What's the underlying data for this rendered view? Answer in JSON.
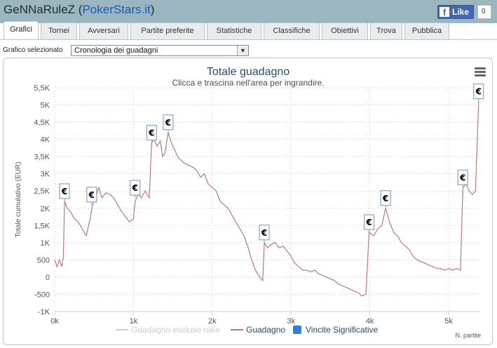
{
  "header": {
    "player_name": "GeNNaRuleZ",
    "site_link": "PokerStars.it",
    "like_label": "Like",
    "like_count": "0"
  },
  "tabs": [
    {
      "label": "Grafici",
      "active": true
    },
    {
      "label": "Tornei",
      "active": false
    },
    {
      "label": "Avversari",
      "active": false
    },
    {
      "label": "Partite preferite",
      "active": false
    },
    {
      "label": "Statistiche",
      "active": false
    },
    {
      "label": "Classifiche",
      "active": false
    },
    {
      "label": "Obiettivi",
      "active": false
    },
    {
      "label": "Trova",
      "active": false
    },
    {
      "label": "Pubblica",
      "active": false
    }
  ],
  "selector": {
    "label": "Grafico selezionato",
    "value": "Cronologia dei guadagni"
  },
  "colors": {
    "header_bg": "#9bb6bf",
    "line_main": "#b97a7a",
    "line_no_rake": "#d0d0d0",
    "flag_border": "#7ea6d8",
    "legend_significant": "#2f7ed8"
  },
  "chart_data": {
    "type": "line",
    "title": "Totale guadagno",
    "subtitle": "Clicca e trascina nell'area per ingrandire.",
    "ylabel": "Totale cumulativo (EUR)",
    "xlabel": "N. partite",
    "xlim": [
      0,
      5400
    ],
    "ylim": [
      -1000,
      5500
    ],
    "x_ticks": [
      0,
      1000,
      2000,
      3000,
      4000,
      5000
    ],
    "x_tick_labels": [
      "0k",
      "1k",
      "2k",
      "3k",
      "4k",
      "5k"
    ],
    "y_ticks": [
      -1000,
      -500,
      0,
      500,
      1000,
      1500,
      2000,
      2500,
      3000,
      3500,
      4000,
      4500,
      5000,
      5500
    ],
    "y_tick_labels": [
      "-1K",
      "-500",
      "0",
      "500",
      "1K",
      "1,5K",
      "2K",
      "2,5K",
      "3K",
      "3,5K",
      "4K",
      "4,5K",
      "5K",
      "5,5K"
    ],
    "grid": true,
    "legend_position": "bottom",
    "legend": [
      "Guadagno escluso rake",
      "Guadagno",
      "Vincite Significative"
    ],
    "series": [
      {
        "name": "Guadagno",
        "points": [
          [
            0,
            500
          ],
          [
            30,
            300
          ],
          [
            60,
            500
          ],
          [
            90,
            300
          ],
          [
            110,
            600
          ],
          [
            125,
            2200
          ],
          [
            160,
            2000
          ],
          [
            200,
            1900
          ],
          [
            250,
            1700
          ],
          [
            300,
            1600
          ],
          [
            350,
            1400
          ],
          [
            400,
            1200
          ],
          [
            450,
            1700
          ],
          [
            480,
            2100
          ],
          [
            520,
            2300
          ],
          [
            560,
            2600
          ],
          [
            600,
            2300
          ],
          [
            650,
            2450
          ],
          [
            700,
            2400
          ],
          [
            750,
            2300
          ],
          [
            800,
            2100
          ],
          [
            850,
            1900
          ],
          [
            900,
            1750
          ],
          [
            950,
            1600
          ],
          [
            1000,
            1700
          ],
          [
            1020,
            2200
          ],
          [
            1060,
            2400
          ],
          [
            1100,
            2300
          ],
          [
            1150,
            2500
          ],
          [
            1200,
            2300
          ],
          [
            1230,
            3900
          ],
          [
            1260,
            4000
          ],
          [
            1300,
            3800
          ],
          [
            1340,
            3950
          ],
          [
            1370,
            3500
          ],
          [
            1400,
            3600
          ],
          [
            1440,
            4200
          ],
          [
            1480,
            3900
          ],
          [
            1520,
            3700
          ],
          [
            1560,
            3500
          ],
          [
            1600,
            3400
          ],
          [
            1650,
            3300
          ],
          [
            1700,
            3250
          ],
          [
            1750,
            3200
          ],
          [
            1800,
            3100
          ],
          [
            1850,
            2900
          ],
          [
            1900,
            3000
          ],
          [
            1950,
            2700
          ],
          [
            2000,
            2600
          ],
          [
            2050,
            2500
          ],
          [
            2100,
            2200
          ],
          [
            2150,
            2100
          ],
          [
            2200,
            2000
          ],
          [
            2250,
            1800
          ],
          [
            2300,
            1600
          ],
          [
            2350,
            1400
          ],
          [
            2400,
            1200
          ],
          [
            2450,
            900
          ],
          [
            2500,
            500
          ],
          [
            2550,
            200
          ],
          [
            2600,
            0
          ],
          [
            2640,
            -100
          ],
          [
            2660,
            1000
          ],
          [
            2700,
            850
          ],
          [
            2750,
            950
          ],
          [
            2800,
            1000
          ],
          [
            2850,
            850
          ],
          [
            2900,
            900
          ],
          [
            2950,
            750
          ],
          [
            3000,
            600
          ],
          [
            3050,
            400
          ],
          [
            3100,
            300
          ],
          [
            3150,
            200
          ],
          [
            3200,
            200
          ],
          [
            3250,
            150
          ],
          [
            3300,
            200
          ],
          [
            3350,
            100
          ],
          [
            3400,
            50
          ],
          [
            3450,
            0
          ],
          [
            3500,
            -50
          ],
          [
            3550,
            -100
          ],
          [
            3600,
            -200
          ],
          [
            3650,
            -250
          ],
          [
            3700,
            -300
          ],
          [
            3750,
            -350
          ],
          [
            3800,
            -400
          ],
          [
            3850,
            -450
          ],
          [
            3900,
            -550
          ],
          [
            3950,
            -500
          ],
          [
            3990,
            1300
          ],
          [
            4050,
            1200
          ],
          [
            4100,
            1400
          ],
          [
            4150,
            1500
          ],
          [
            4200,
            2000
          ],
          [
            4250,
            1600
          ],
          [
            4300,
            1300
          ],
          [
            4350,
            1200
          ],
          [
            4400,
            1000
          ],
          [
            4450,
            900
          ],
          [
            4500,
            800
          ],
          [
            4550,
            600
          ],
          [
            4600,
            500
          ],
          [
            4650,
            450
          ],
          [
            4700,
            400
          ],
          [
            4750,
            350
          ],
          [
            4800,
            300
          ],
          [
            4850,
            250
          ],
          [
            4900,
            250
          ],
          [
            4950,
            200
          ],
          [
            5000,
            250
          ],
          [
            5050,
            200
          ],
          [
            5100,
            250
          ],
          [
            5150,
            200
          ],
          [
            5180,
            2600
          ],
          [
            5220,
            2700
          ],
          [
            5260,
            2500
          ],
          [
            5300,
            2400
          ],
          [
            5340,
            2500
          ],
          [
            5380,
            5100
          ]
        ]
      }
    ],
    "significant_wins": [
      {
        "x": 125,
        "y": 2200,
        "label": "€"
      },
      {
        "x": 470,
        "y": 2100,
        "label": "€"
      },
      {
        "x": 1020,
        "y": 2300,
        "label": "€"
      },
      {
        "x": 1230,
        "y": 3900,
        "label": "€"
      },
      {
        "x": 1440,
        "y": 4200,
        "label": "€"
      },
      {
        "x": 2660,
        "y": 1000,
        "label": "€"
      },
      {
        "x": 3990,
        "y": 1300,
        "label": "€"
      },
      {
        "x": 4200,
        "y": 2000,
        "label": "€"
      },
      {
        "x": 5180,
        "y": 2600,
        "label": "€"
      },
      {
        "x": 5380,
        "y": 5100,
        "label": "€"
      }
    ]
  }
}
